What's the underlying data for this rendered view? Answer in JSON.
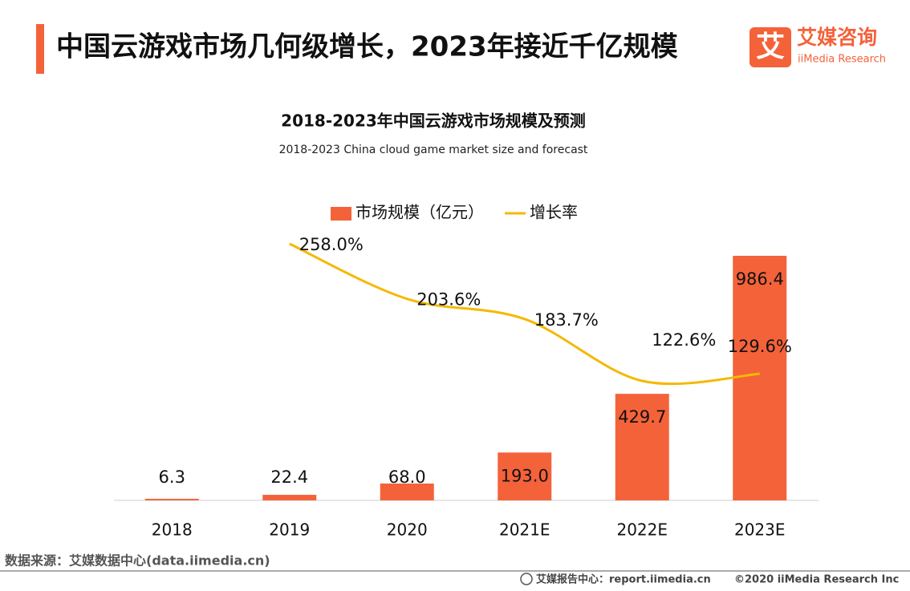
{
  "header": {
    "title": "中国云游戏市场几何级增长，2023年接近千亿规模",
    "logo_mark": "艾",
    "logo_name": "艾媒咨询",
    "logo_sub": "iiMedia Research"
  },
  "chart_data": {
    "type": "bar",
    "title": "2018-2023年中国云游戏市场规模及预测",
    "subtitle": "2018-2023 China cloud game market size and forecast",
    "categories": [
      "2018",
      "2019",
      "2020",
      "2021E",
      "2022E",
      "2023E"
    ],
    "series": [
      {
        "name": "市场规模（亿元）",
        "type": "bar",
        "color": "#f4623a",
        "values": [
          6.3,
          22.4,
          68,
          193,
          429.7,
          986.4
        ],
        "value_labels": [
          "6.3",
          "22.4",
          "68.0",
          "193.0",
          "429.7",
          "986.4"
        ]
      },
      {
        "name": "增长率",
        "type": "line",
        "axis": "y2",
        "color": "#f5b800",
        "values": [
          null,
          258,
          203.6,
          183.7,
          122.6,
          129.6
        ],
        "value_labels": [
          null,
          "258.0%",
          "203.6%",
          "183.7%",
          "122.6%",
          "129.6%"
        ]
      }
    ]
  },
  "footer": {
    "source": "数据来源：艾媒数据中心(data.iimedia.cn)",
    "report": "艾媒报告中心：report.iimedia.cn",
    "copyright": "©2020  iiMedia Research  Inc"
  }
}
